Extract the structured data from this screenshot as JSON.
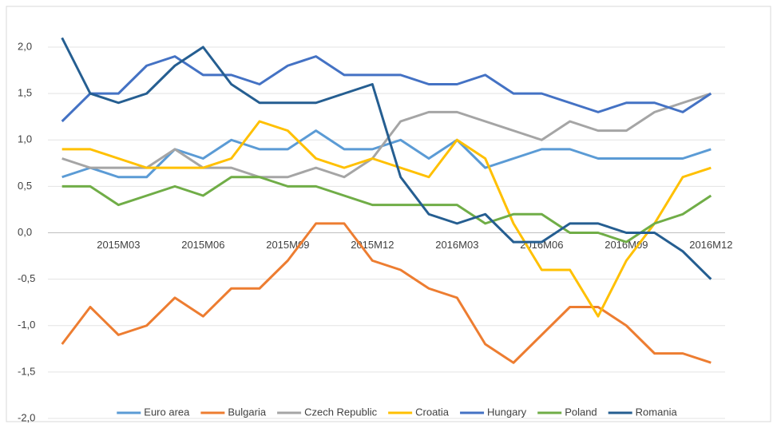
{
  "chart_data": {
    "type": "line",
    "categories": [
      null,
      null,
      "2015M03",
      null,
      null,
      "2015M06",
      null,
      null,
      "2015M09",
      null,
      null,
      "2015M12",
      null,
      null,
      "2016M03",
      null,
      null,
      "2016M06",
      null,
      null,
      "2016M09",
      null,
      null,
      "2016M12"
    ],
    "series": [
      {
        "name": "Euro area",
        "color": "#5b9bd5",
        "values": [
          0.6,
          0.7,
          0.6,
          0.6,
          0.9,
          0.8,
          1.0,
          0.9,
          0.9,
          1.1,
          0.9,
          0.9,
          1.0,
          0.8,
          1.0,
          0.7,
          0.8,
          0.9,
          0.9,
          0.8,
          0.8,
          0.8,
          0.8,
          0.9
        ]
      },
      {
        "name": "Bulgaria",
        "color": "#ed7d31",
        "values": [
          -1.2,
          -0.8,
          -1.1,
          -1.0,
          -0.7,
          -0.9,
          -0.6,
          -0.6,
          -0.3,
          0.1,
          0.1,
          -0.3,
          -0.4,
          -0.6,
          -0.7,
          -1.2,
          -1.4,
          -1.1,
          -0.8,
          -0.8,
          -1.0,
          -1.3,
          -1.3,
          -1.4
        ]
      },
      {
        "name": "Czech Republic",
        "color": "#a5a5a5",
        "values": [
          0.8,
          0.7,
          0.7,
          0.7,
          0.9,
          0.7,
          0.7,
          0.6,
          0.6,
          0.7,
          0.6,
          0.8,
          1.2,
          1.3,
          1.3,
          1.2,
          1.1,
          1.0,
          1.2,
          1.1,
          1.1,
          1.3,
          1.4,
          1.5
        ]
      },
      {
        "name": "Croatia",
        "color": "#ffc000",
        "values": [
          0.9,
          0.9,
          0.8,
          0.7,
          0.7,
          0.7,
          0.8,
          1.2,
          1.1,
          0.8,
          0.7,
          0.8,
          0.7,
          0.6,
          1.0,
          0.8,
          0.1,
          -0.4,
          -0.4,
          -0.9,
          -0.3,
          0.1,
          0.6,
          0.7
        ]
      },
      {
        "name": "Hungary",
        "color": "#4472c4",
        "values": [
          1.2,
          1.5,
          1.5,
          1.8,
          1.9,
          1.7,
          1.7,
          1.6,
          1.8,
          1.9,
          1.7,
          1.7,
          1.7,
          1.6,
          1.6,
          1.7,
          1.5,
          1.5,
          1.4,
          1.3,
          1.4,
          1.4,
          1.3,
          1.5
        ]
      },
      {
        "name": "Poland",
        "color": "#70ad47",
        "values": [
          0.5,
          0.5,
          0.3,
          0.4,
          0.5,
          0.4,
          0.6,
          0.6,
          0.5,
          0.5,
          0.4,
          0.3,
          0.3,
          0.3,
          0.3,
          0.1,
          0.2,
          0.2,
          0.0,
          0.0,
          -0.1,
          0.1,
          0.2,
          0.4
        ]
      },
      {
        "name": "Romania",
        "color": "#255e91",
        "values": [
          2.1,
          1.5,
          1.4,
          1.5,
          1.8,
          2.0,
          1.6,
          1.4,
          1.4,
          1.4,
          1.5,
          1.6,
          0.6,
          0.2,
          0.1,
          0.2,
          -0.1,
          -0.1,
          0.1,
          0.1,
          0.0,
          0.0,
          -0.2,
          -0.5
        ]
      }
    ],
    "ylim": [
      -2,
      2.2
    ],
    "yticks": [
      {
        "value": -2,
        "label": "-2,0"
      },
      {
        "value": -1.5,
        "label": "-1,5"
      },
      {
        "value": -1,
        "label": "-1,0"
      },
      {
        "value": -0.5,
        "label": "-0,5"
      },
      {
        "value": 0,
        "label": "0,0"
      },
      {
        "value": 0.5,
        "label": "0,5"
      },
      {
        "value": 1,
        "label": "1,0"
      },
      {
        "value": 1.5,
        "label": "1,5"
      },
      {
        "value": 2,
        "label": "2,0"
      }
    ],
    "grid": true,
    "legend": "bottom"
  }
}
